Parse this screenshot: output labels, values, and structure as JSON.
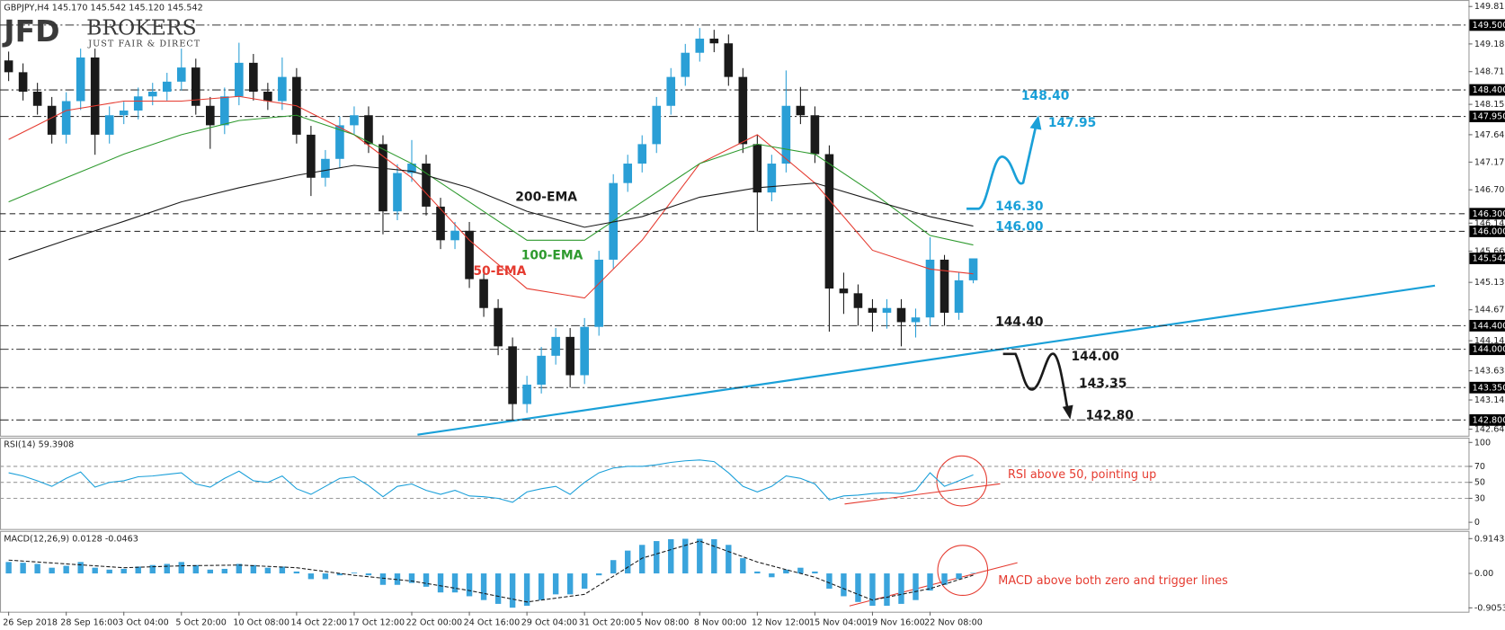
{
  "header": {
    "logo_main": "JFD",
    "logo_brand": "BROKERS",
    "logo_tagline": "JUST FAIR & DIRECT"
  },
  "chart_data": [
    {
      "type": "candlestick",
      "title": "GBPJPY,H4  145.170 145.542 145.120 145.542",
      "categories": [
        "26 Sep 2018",
        null,
        null,
        null,
        "28 Sep 16:00",
        null,
        null,
        null,
        "3 Oct 04:00",
        null,
        null,
        null,
        "5 Oct 20:00",
        null,
        null,
        null,
        "10 Oct 08:00",
        null,
        null,
        null,
        "14 Oct 22:00",
        null,
        null,
        null,
        "17 Oct 12:00",
        null,
        null,
        null,
        "22 Oct 00:00",
        null,
        null,
        null,
        "24 Oct 16:00",
        null,
        null,
        null,
        "29 Oct 04:00",
        null,
        null,
        null,
        "31 Oct 20:00",
        null,
        null,
        null,
        "5 Nov 08:00",
        null,
        null,
        null,
        "8 Nov 00:00",
        null,
        null,
        null,
        "12 Nov 12:00",
        null,
        null,
        null,
        "15 Nov 04:00",
        null,
        null,
        null,
        "19 Nov 16:00",
        null,
        null,
        null,
        "22 Nov 08:00",
        null,
        null,
        null
      ],
      "open": [
        148.9,
        148.7,
        148.37,
        148.13,
        147.64,
        148.21,
        148.95,
        147.64,
        147.97,
        148.05,
        148.29,
        148.37,
        148.54,
        148.78,
        148.13,
        147.8,
        148.29,
        148.86,
        148.37,
        148.21,
        148.62,
        147.64,
        146.91,
        147.23,
        147.8,
        147.97,
        147.48,
        146.34,
        146.99,
        147.15,
        146.42,
        145.85,
        146.01,
        145.19,
        144.7,
        144.05,
        143.07,
        143.4,
        143.89,
        144.21,
        143.56,
        144.38,
        145.52,
        146.82,
        147.15,
        147.48,
        148.13,
        148.62,
        149.03,
        149.27,
        149.19,
        148.62,
        147.48,
        146.66,
        147.15,
        148.13,
        147.97,
        147.31,
        145.03,
        144.95,
        144.7,
        144.62,
        144.7,
        144.46,
        144.54,
        145.52,
        144.62,
        145.17
      ],
      "high": [
        149.05,
        148.85,
        148.52,
        148.28,
        148.36,
        149.1,
        149.1,
        148.12,
        148.2,
        148.44,
        148.52,
        148.69,
        149.1,
        148.93,
        148.28,
        148.44,
        149.2,
        149.01,
        148.52,
        148.95,
        148.77,
        147.79,
        147.38,
        147.95,
        148.12,
        148.12,
        147.63,
        147.14,
        147.55,
        147.3,
        146.57,
        146.16,
        146.16,
        145.34,
        144.85,
        144.2,
        143.55,
        144.04,
        144.36,
        144.36,
        144.53,
        145.67,
        146.97,
        147.3,
        147.63,
        148.28,
        148.77,
        149.18,
        149.45,
        149.42,
        149.34,
        148.77,
        147.63,
        147.3,
        148.73,
        148.45,
        148.12,
        147.46,
        145.3,
        145.1,
        144.85,
        144.85,
        144.85,
        144.69,
        145.9,
        145.6,
        145.3,
        145.542
      ],
      "low": [
        148.55,
        148.22,
        147.98,
        147.49,
        147.49,
        148.06,
        147.3,
        147.49,
        147.82,
        147.9,
        148.14,
        148.22,
        148.39,
        147.98,
        147.4,
        147.65,
        148.14,
        148.22,
        148.06,
        148.06,
        147.49,
        146.6,
        146.76,
        147.08,
        147.65,
        147.33,
        145.95,
        146.19,
        146.84,
        146.27,
        145.7,
        145.7,
        145.04,
        144.55,
        143.9,
        142.8,
        142.92,
        143.25,
        143.74,
        143.35,
        143.41,
        144.23,
        145.37,
        146.67,
        147.0,
        147.33,
        147.98,
        148.47,
        148.88,
        149.04,
        148.47,
        147.33,
        146.0,
        146.51,
        147.0,
        147.82,
        147.16,
        144.3,
        144.6,
        144.4,
        144.3,
        144.35,
        144.05,
        144.2,
        144.39,
        144.4,
        144.5,
        145.12
      ],
      "close": [
        148.7,
        148.37,
        148.13,
        147.64,
        148.21,
        148.95,
        147.64,
        147.97,
        148.05,
        148.29,
        148.37,
        148.54,
        148.78,
        148.13,
        147.8,
        148.29,
        148.86,
        148.37,
        148.21,
        148.62,
        147.64,
        146.91,
        147.23,
        147.8,
        147.97,
        147.48,
        146.34,
        146.99,
        147.15,
        146.42,
        145.85,
        146.01,
        145.19,
        144.7,
        144.05,
        143.07,
        143.4,
        143.89,
        144.21,
        143.56,
        144.38,
        145.52,
        146.82,
        147.15,
        147.48,
        148.13,
        148.62,
        149.03,
        149.27,
        149.19,
        148.62,
        147.48,
        146.66,
        147.15,
        148.13,
        147.97,
        147.31,
        145.03,
        144.95,
        144.7,
        144.62,
        144.7,
        144.46,
        144.54,
        145.52,
        144.62,
        145.17,
        145.542
      ],
      "up_color": "#2a9fd6",
      "down_color": "#1a1a1a",
      "ylim": [
        142.55,
        149.86
      ],
      "yticks": [
        {
          "value": 149.815,
          "label": "149.815"
        },
        {
          "value": 149.18,
          "label": "149.180"
        },
        {
          "value": 148.71,
          "label": "148.710"
        },
        {
          "value": 148.155,
          "label": "148.155"
        },
        {
          "value": 147.64,
          "label": "147.640"
        },
        {
          "value": 147.175,
          "label": "147.175"
        },
        {
          "value": 146.705,
          "label": "146.705"
        },
        {
          "value": 146.14,
          "label": "146.140"
        },
        {
          "value": 145.665,
          "label": "145.665"
        },
        {
          "value": 145.135,
          "label": "145.135"
        },
        {
          "value": 144.67,
          "label": "144.670"
        },
        {
          "value": 144.145,
          "label": "144.145"
        },
        {
          "value": 143.635,
          "label": "143.635"
        },
        {
          "value": 143.14,
          "label": "143.140"
        },
        {
          "value": 142.645,
          "label": "142.645"
        }
      ],
      "levels": [
        {
          "value": 149.5,
          "label": "149.500",
          "style": "dash-dot"
        },
        {
          "value": 148.4,
          "label": "148.400",
          "style": "dash-dot"
        },
        {
          "value": 147.95,
          "label": "147.950",
          "style": "dash-dot"
        },
        {
          "value": 146.3,
          "label": "146.300",
          "style": "dashed"
        },
        {
          "value": 146.0,
          "label": "146.000",
          "style": "dashed"
        },
        {
          "value": 144.4,
          "label": "144.400",
          "style": "dash-dot"
        },
        {
          "value": 144.0,
          "label": "144.000",
          "style": "dash-dot"
        },
        {
          "value": 143.35,
          "label": "143.350",
          "style": "dash-dot"
        },
        {
          "value": 142.8,
          "label": "142.800",
          "style": "dash-dot"
        }
      ],
      "current": {
        "value": 145.542,
        "label": "145.542"
      },
      "lines": [
        {
          "label": "50-EMA",
          "color": "#e53a2f",
          "x": [
            0,
            4,
            8,
            12,
            16,
            20,
            24,
            28,
            32,
            36,
            40,
            44,
            48,
            52,
            56,
            60,
            64,
            67
          ],
          "values": [
            147.56,
            148.05,
            148.21,
            148.21,
            148.29,
            148.13,
            147.64,
            146.91,
            145.85,
            145.03,
            144.87,
            145.85,
            147.15,
            147.64,
            146.82,
            145.68,
            145.36,
            145.28
          ]
        },
        {
          "label": "100-EMA",
          "color": "#2e9a2e",
          "x": [
            0,
            4,
            8,
            12,
            16,
            20,
            24,
            28,
            32,
            36,
            40,
            44,
            48,
            52,
            56,
            60,
            64,
            67
          ],
          "values": [
            146.5,
            146.91,
            147.31,
            147.64,
            147.88,
            147.97,
            147.64,
            147.15,
            146.5,
            145.85,
            145.85,
            146.5,
            147.15,
            147.48,
            147.31,
            146.66,
            145.93,
            145.77
          ]
        },
        {
          "label": "200-EMA",
          "color": "#1a1a1a",
          "x": [
            0,
            4,
            8,
            12,
            16,
            20,
            24,
            28,
            32,
            36,
            40,
            44,
            48,
            52,
            56,
            60,
            64,
            67
          ],
          "values": [
            145.52,
            145.85,
            146.17,
            146.5,
            146.74,
            146.95,
            147.12,
            147.02,
            146.74,
            146.34,
            146.07,
            146.25,
            146.58,
            146.74,
            146.82,
            146.53,
            146.25,
            146.09
          ]
        }
      ],
      "annotations": [
        {
          "text": "148.40",
          "color": "#1aa0d8"
        },
        {
          "text": "147.95",
          "color": "#1aa0d8"
        },
        {
          "text": "146.30",
          "color": "#1aa0d8"
        },
        {
          "text": "146.00",
          "color": "#1aa0d8"
        },
        {
          "text": "144.40",
          "color": "#1a1a1a"
        },
        {
          "text": "144.00",
          "color": "#1a1a1a"
        },
        {
          "text": "143.35",
          "color": "#1a1a1a"
        },
        {
          "text": "142.80",
          "color": "#1a1a1a"
        }
      ]
    },
    {
      "type": "line",
      "title": "RSI(14) 59.3908",
      "color": "#1a9fd9",
      "values": [
        62,
        58,
        52,
        45,
        55,
        63,
        44,
        50,
        52,
        57,
        58,
        60,
        62,
        48,
        44,
        55,
        64,
        52,
        50,
        58,
        42,
        35,
        45,
        55,
        57,
        46,
        32,
        45,
        48,
        40,
        35,
        40,
        33,
        32,
        30,
        25,
        38,
        42,
        45,
        35,
        50,
        62,
        68,
        70,
        70,
        72,
        75,
        77,
        78,
        76,
        62,
        45,
        38,
        45,
        58,
        55,
        48,
        28,
        33,
        34,
        36,
        37,
        36,
        40,
        62,
        45,
        52,
        59.3908
      ],
      "ylim": [
        0,
        100
      ],
      "yticks": [
        100,
        70,
        50,
        30,
        0
      ],
      "annotation": "RSI above 50, pointing up"
    },
    {
      "type": "macd",
      "title": "MACD(12,26,9) 0.0128 -0.0463",
      "color": "#3aa4dc",
      "values": [
        0.3,
        0.28,
        0.25,
        0.15,
        0.2,
        0.3,
        0.15,
        0.1,
        0.12,
        0.18,
        0.22,
        0.25,
        0.3,
        0.22,
        0.1,
        0.12,
        0.25,
        0.22,
        0.15,
        0.18,
        0.05,
        -0.15,
        -0.15,
        -0.05,
        0.02,
        -0.05,
        -0.3,
        -0.3,
        -0.25,
        -0.35,
        -0.5,
        -0.5,
        -0.6,
        -0.7,
        -0.8,
        -0.9,
        -0.85,
        -0.7,
        -0.55,
        -0.55,
        -0.4,
        -0.05,
        0.35,
        0.6,
        0.75,
        0.85,
        0.9,
        0.91,
        0.91,
        0.9,
        0.75,
        0.4,
        0.05,
        -0.1,
        0.1,
        0.15,
        0.05,
        -0.4,
        -0.6,
        -0.75,
        -0.85,
        -0.85,
        -0.8,
        -0.7,
        -0.45,
        -0.3,
        -0.15,
        0.0128
      ],
      "signal": {
        "color": "#1a1a1a",
        "x": [
          0,
          4,
          8,
          12,
          16,
          20,
          24,
          28,
          32,
          36,
          40,
          44,
          48,
          52,
          56,
          60,
          64,
          67
        ],
        "values": [
          0.35,
          0.25,
          0.15,
          0.2,
          0.22,
          0.15,
          -0.05,
          -0.2,
          -0.45,
          -0.75,
          -0.55,
          0.4,
          0.85,
          0.3,
          -0.1,
          -0.7,
          -0.4,
          -0.0463
        ]
      },
      "ylim": [
        -0.9053,
        0.9143
      ],
      "yticks": [
        0.9143,
        {
          "value": 0,
          "label": "0.00"
        },
        -0.9053
      ],
      "annotation": "MACD above both zero and trigger lines"
    }
  ]
}
